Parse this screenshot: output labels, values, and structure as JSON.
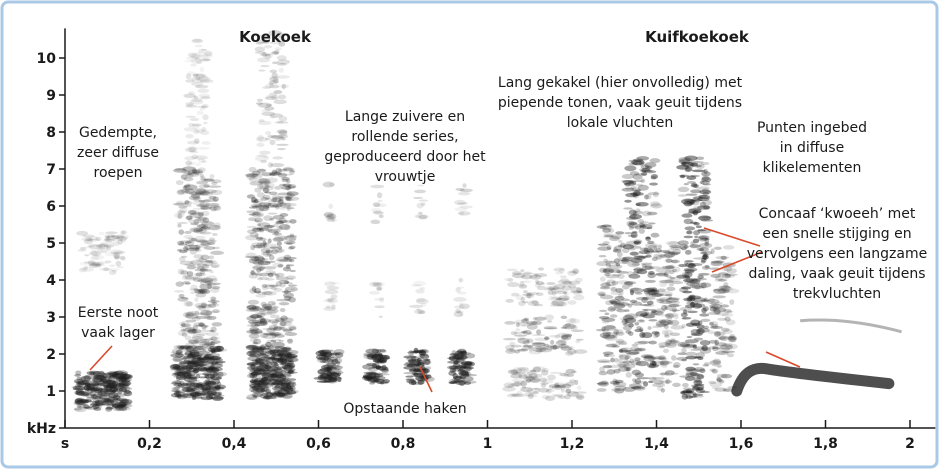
{
  "chart_data": {
    "type": "spectrogram",
    "section_titles": [
      "Koekoek",
      "Kuifkoekoek"
    ],
    "xlim": [
      0,
      2.06
    ],
    "ylim": [
      0,
      10.8
    ],
    "xticks": [
      {
        "value": 0,
        "label": "s"
      },
      {
        "value": 0.2,
        "label": "0,2"
      },
      {
        "value": 0.4,
        "label": "0,4"
      },
      {
        "value": 0.6,
        "label": "0,6"
      },
      {
        "value": 0.8,
        "label": "0,8"
      },
      1,
      {
        "value": 1.2,
        "label": "1,2"
      },
      {
        "value": 1.4,
        "label": "1,4"
      },
      {
        "value": 1.6,
        "label": "1,6"
      },
      {
        "value": 1.8,
        "label": "1,8"
      },
      2
    ],
    "yticks": [
      {
        "value": 0,
        "label": "kHz"
      },
      1,
      2,
      3,
      4,
      5,
      6,
      7,
      8,
      9,
      10
    ],
    "annotations": [
      [
        "Gedempte,",
        "zeer diffuse",
        "roepen"
      ],
      [
        "Eerste noot",
        "vaak lager"
      ],
      [
        "Lange zuivere en",
        "rollende series,",
        "geproduceerd door het",
        "vrouwtje"
      ],
      [
        "Opstaande haken"
      ],
      [
        "Lang gekakel (hier onvolledig) met",
        "piepende tonen, vaak geuit tijdens",
        "lokale vluchten"
      ],
      [
        "Punten ingebed",
        "in diffuse",
        "klikelementen"
      ],
      [
        "Concaaf ‘kwoeeh’ met",
        "een snelle stijging en",
        "vervolgens een langzame",
        "daling, vaak geuit tijdens",
        "trekvluchten"
      ]
    ]
  }
}
